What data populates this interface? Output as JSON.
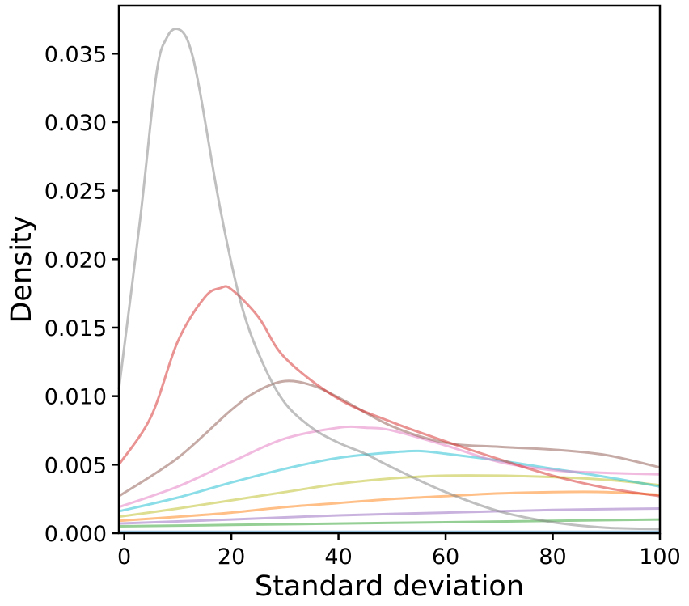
{
  "chart_data": {
    "type": "line",
    "title": "",
    "xlabel": "Standard deviation",
    "ylabel": "Density",
    "xlim": [
      -1,
      100
    ],
    "ylim": [
      0,
      0.0385
    ],
    "xticks": [
      0,
      20,
      40,
      60,
      80,
      100
    ],
    "xtick_labels": [
      "0",
      "20",
      "40",
      "60",
      "80",
      "100"
    ],
    "yticks": [
      0.0,
      0.005,
      0.01,
      0.015,
      0.02,
      0.025,
      0.03,
      0.035
    ],
    "ytick_labels": [
      "0.000",
      "0.005",
      "0.010",
      "0.015",
      "0.020",
      "0.025",
      "0.030",
      "0.035"
    ],
    "grid": false,
    "legend": "none",
    "series": [
      {
        "color": "#2ca02c",
        "x": [
          -1,
          20,
          40,
          60,
          80,
          100
        ],
        "y": [
          0.0005,
          0.0006,
          0.0007,
          0.0008,
          0.0009,
          0.001
        ]
      },
      {
        "color": "#9467bd",
        "x": [
          -1,
          20,
          40,
          60,
          80,
          100
        ],
        "y": [
          0.0007,
          0.001,
          0.0013,
          0.0015,
          0.0017,
          0.0018
        ]
      },
      {
        "color": "#ff7f0e",
        "x": [
          -1,
          10,
          20,
          30,
          40,
          50,
          60,
          70,
          80,
          90,
          100
        ],
        "y": [
          0.0009,
          0.0012,
          0.0015,
          0.0019,
          0.0022,
          0.0025,
          0.0027,
          0.0029,
          0.003,
          0.003,
          0.0028
        ]
      },
      {
        "color": "#bcbd22",
        "x": [
          -1,
          10,
          20,
          30,
          40,
          50,
          60,
          70,
          80,
          90,
          100
        ],
        "y": [
          0.0012,
          0.0018,
          0.0024,
          0.003,
          0.0036,
          0.004,
          0.0042,
          0.0042,
          0.0041,
          0.0039,
          0.0035
        ]
      },
      {
        "color": "#17becf",
        "x": [
          -1,
          10,
          20,
          30,
          40,
          50,
          55,
          60,
          70,
          80,
          90,
          100
        ],
        "y": [
          0.0016,
          0.0026,
          0.0037,
          0.0047,
          0.0055,
          0.0059,
          0.006,
          0.0058,
          0.0053,
          0.0047,
          0.0041,
          0.0034
        ]
      },
      {
        "color": "#e377c2",
        "x": [
          -1,
          10,
          20,
          30,
          40,
          45,
          50,
          60,
          70,
          80,
          90,
          100
        ],
        "y": [
          0.0019,
          0.0034,
          0.0052,
          0.0069,
          0.0077,
          0.0077,
          0.0075,
          0.0064,
          0.0052,
          0.0046,
          0.0044,
          0.0043
        ]
      },
      {
        "color": "#8c564b",
        "x": [
          -1,
          10,
          20,
          25,
          30,
          35,
          40,
          50,
          60,
          70,
          80,
          90,
          100
        ],
        "y": [
          0.0027,
          0.0055,
          0.009,
          0.0104,
          0.0111,
          0.0108,
          0.0099,
          0.0078,
          0.0066,
          0.0063,
          0.0061,
          0.0057,
          0.0048
        ]
      },
      {
        "color": "#d62728",
        "x": [
          -1,
          5,
          10,
          15,
          18,
          20,
          25,
          30,
          40,
          50,
          60,
          70,
          80,
          90,
          100
        ],
        "y": [
          0.005,
          0.0085,
          0.014,
          0.0172,
          0.0179,
          0.0178,
          0.0158,
          0.0128,
          0.0098,
          0.0081,
          0.0067,
          0.0054,
          0.0042,
          0.0033,
          0.0027
        ]
      },
      {
        "color": "#7f7f7f",
        "x": [
          -1,
          3,
          6,
          8,
          10,
          12,
          14,
          18,
          22,
          26,
          30,
          35,
          40,
          45,
          50,
          60,
          70,
          80,
          90,
          100
        ],
        "y": [
          0.0105,
          0.023,
          0.0335,
          0.0362,
          0.0368,
          0.0358,
          0.0325,
          0.0235,
          0.0165,
          0.0123,
          0.0095,
          0.0077,
          0.0066,
          0.0058,
          0.0048,
          0.003,
          0.0016,
          0.0008,
          0.0004,
          0.0003
        ]
      },
      {
        "color": "#1f77b4",
        "x": [
          -1,
          50,
          100
        ],
        "y": [
          0.0001,
          0.0001,
          0.0001
        ]
      }
    ]
  }
}
